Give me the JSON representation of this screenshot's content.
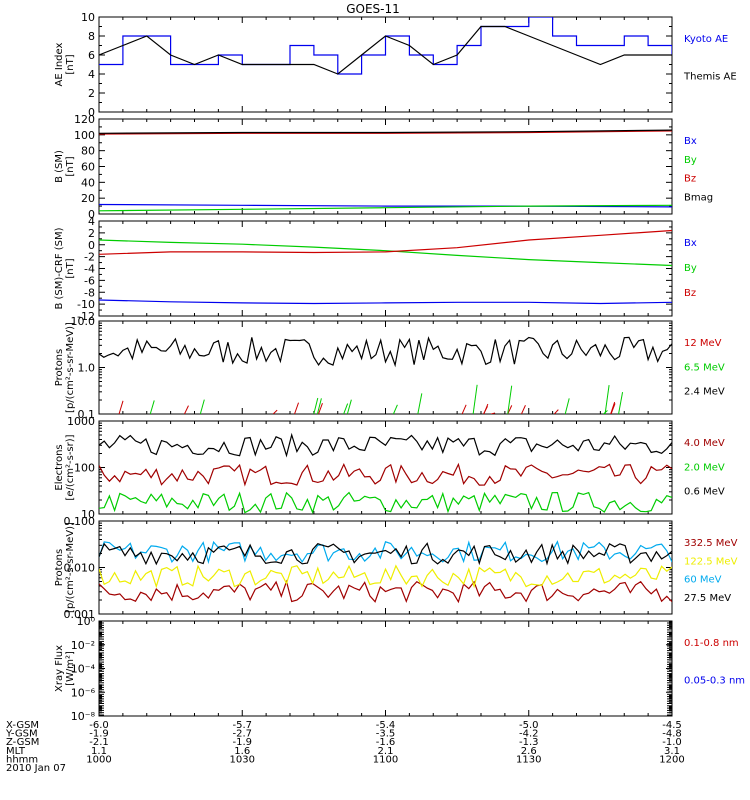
{
  "title": "GOES-11",
  "colors": {
    "black": "#000000",
    "blue": "#0000ee",
    "green": "#00cc00",
    "red": "#cc0000",
    "darkred": "#a00000",
    "yellow": "#eeee00",
    "cyan": "#00aaee"
  },
  "x_axis": {
    "row_labels": [
      "X-GSM",
      "Y-GSM",
      "Z-GSM",
      "MLT",
      "hhmm",
      "2010 Jan 07"
    ],
    "columns": [
      {
        "X-GSM": "-6.0",
        "Y-GSM": "-1.9",
        "Z-GSM": "-2.1",
        "MLT": "1.1",
        "hhmm": "1000"
      },
      {
        "X-GSM": "-5.7",
        "Y-GSM": "-2.7",
        "Z-GSM": "-1.9",
        "MLT": "1.6",
        "hhmm": "1030"
      },
      {
        "X-GSM": "-5.4",
        "Y-GSM": "-3.5",
        "Z-GSM": "-1.6",
        "MLT": "2.1",
        "hhmm": "1100"
      },
      {
        "X-GSM": "-5.0",
        "Y-GSM": "-4.2",
        "Z-GSM": "-1.3",
        "MLT": "2.6",
        "hhmm": "1130"
      },
      {
        "X-GSM": "-4.5",
        "Y-GSM": "-4.8",
        "Z-GSM": "-1.0",
        "MLT": "3.1",
        "hhmm": "1200"
      }
    ]
  },
  "chart_data": [
    {
      "type": "line",
      "ylabel": "AE Index [nT]",
      "ylim": [
        0,
        10
      ],
      "yticks": [
        "0",
        "2",
        "4",
        "6",
        "8",
        "10"
      ],
      "scale": "linear",
      "x_minutes": [
        0,
        5,
        10,
        15,
        20,
        25,
        30,
        35,
        40,
        45,
        50,
        55,
        60,
        65,
        70,
        75,
        80,
        85,
        90,
        95,
        100,
        105,
        110,
        115,
        120
      ],
      "series": [
        {
          "name": "Kyoto AE",
          "color": "blue",
          "step": true,
          "values": [
            5,
            8,
            8,
            5,
            5,
            6,
            5,
            5,
            7,
            6,
            4,
            6,
            8,
            6,
            5,
            7,
            9,
            9,
            10,
            8,
            7,
            7,
            8,
            7,
            6
          ]
        },
        {
          "name": "Themis AE",
          "color": "black",
          "values": [
            6,
            7,
            8,
            6,
            5,
            6,
            5,
            5,
            5,
            5,
            4,
            6,
            8,
            7,
            5,
            6,
            9,
            9,
            8,
            7,
            6,
            5,
            6,
            6,
            6
          ]
        }
      ]
    },
    {
      "type": "line",
      "ylabel": "B (SM) [nT]",
      "ylim": [
        0,
        120
      ],
      "yticks": [
        "0",
        "20",
        "40",
        "60",
        "80",
        "100",
        "120"
      ],
      "scale": "linear",
      "x_minutes": [
        0,
        30,
        60,
        90,
        120
      ],
      "series": [
        {
          "name": "Bx",
          "color": "blue",
          "values": [
            12,
            11,
            10,
            10,
            9
          ]
        },
        {
          "name": "By",
          "color": "green",
          "values": [
            4,
            6,
            8,
            10,
            11
          ]
        },
        {
          "name": "Bz",
          "color": "red",
          "values": [
            101,
            102,
            102,
            103,
            105
          ]
        },
        {
          "name": "Bmag",
          "color": "black",
          "values": [
            102,
            103,
            103,
            104,
            106
          ]
        }
      ]
    },
    {
      "type": "line",
      "ylabel": "B (SM)-CRF (SM) [nT]",
      "ylim": [
        -12,
        4
      ],
      "yticks": [
        "-12",
        "-10",
        "-8",
        "-6",
        "-4",
        "-2",
        "0",
        "2",
        "4"
      ],
      "scale": "linear",
      "x_minutes": [
        0,
        15,
        30,
        45,
        60,
        75,
        90,
        105,
        120
      ],
      "series": [
        {
          "name": "Bx",
          "color": "blue",
          "values": [
            -9.3,
            -9.6,
            -9.8,
            -9.9,
            -9.8,
            -9.7,
            -9.7,
            -9.9,
            -9.7
          ]
        },
        {
          "name": "By",
          "color": "green",
          "values": [
            0.8,
            0.4,
            0.1,
            -0.4,
            -1.0,
            -1.8,
            -2.5,
            -3.0,
            -3.5
          ]
        },
        {
          "name": "Bz",
          "color": "red",
          "values": [
            -1.6,
            -1.2,
            -1.2,
            -1.3,
            -1.2,
            -0.5,
            0.8,
            1.6,
            2.4
          ]
        }
      ]
    },
    {
      "type": "line",
      "ylabel": "Protons [p/(cm²-s-sr-MeV)]",
      "ylim": [
        0.1,
        10
      ],
      "yticks": [
        "0.1",
        "1.0",
        "10.0"
      ],
      "scale": "log",
      "series": [
        {
          "name": "12 MeV",
          "color": "red",
          "values": []
        },
        {
          "name": "6.5 MeV",
          "color": "green",
          "values": []
        },
        {
          "name": "2.4 MeV",
          "color": "black",
          "values": []
        }
      ],
      "notes": "noisy black ~1-5, sparse green/red near floor"
    },
    {
      "type": "line",
      "ylabel": "Electrons [e/(cm²-s-sr)]",
      "ylim": [
        10,
        1000
      ],
      "yticks": [
        "10",
        "100",
        "1000"
      ],
      "scale": "log",
      "series": [
        {
          "name": "4.0 MeV",
          "color": "darkred",
          "level": 70
        },
        {
          "name": "2.0 MeV",
          "color": "green",
          "level": 18
        },
        {
          "name": "0.6 MeV",
          "color": "black",
          "level": 300
        }
      ]
    },
    {
      "type": "line",
      "ylabel": "Protons [p/(cm²-s-sr-MeV)]",
      "ylim": [
        0.001,
        0.1
      ],
      "yticks": [
        "0.001",
        "0.010",
        "0.100"
      ],
      "scale": "log",
      "series": [
        {
          "name": "332.5 MeV",
          "color": "darkred",
          "level": 0.003
        },
        {
          "name": "122.5 MeV",
          "color": "yellow",
          "level": 0.0065
        },
        {
          "name": "60 MeV",
          "color": "cyan",
          "level": 0.022
        },
        {
          "name": "27.5 MeV",
          "color": "black",
          "level": 0.02
        }
      ]
    },
    {
      "type": "line",
      "ylabel": "Xray Flux [W/m²]",
      "ylim": [
        1e-09,
        1
      ],
      "yticks": [
        "10⁻⁸",
        "10⁻⁶",
        "10⁻⁴",
        "10⁻²",
        "10⁰"
      ],
      "scale": "log",
      "series": [
        {
          "name": "0.1-0.8 nm",
          "color": "red",
          "values": []
        },
        {
          "name": "0.05-0.3 nm",
          "color": "blue",
          "values": []
        }
      ]
    }
  ]
}
